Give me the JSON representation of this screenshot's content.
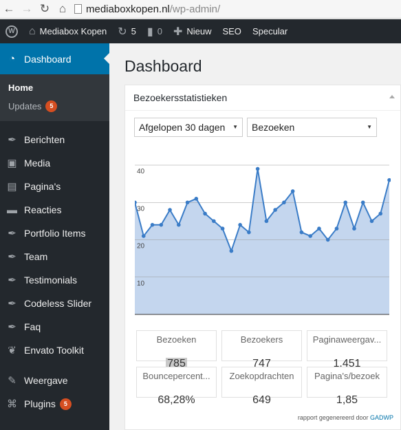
{
  "browser": {
    "url_domain": "mediaboxkopen.nl",
    "url_path": "/wp-admin/"
  },
  "adminbar": {
    "site_name": "Mediabox Kopen",
    "updates_count": "5",
    "comments_count": "0",
    "new_label": "Nieuw",
    "seo_label": "SEO",
    "theme_label": "Specular"
  },
  "sidebar": {
    "active": "Dashboard",
    "submenu": [
      {
        "label": "Home",
        "badge": ""
      },
      {
        "label": "Updates",
        "badge": "5"
      }
    ],
    "items": [
      {
        "label": "Berichten",
        "icon": "pin-icon"
      },
      {
        "label": "Media",
        "icon": "media-icon"
      },
      {
        "label": "Pagina's",
        "icon": "pages-icon"
      },
      {
        "label": "Reacties",
        "icon": "comments-icon"
      },
      {
        "label": "Portfolio Items",
        "icon": "pin-icon"
      },
      {
        "label": "Team",
        "icon": "pin-icon"
      },
      {
        "label": "Testimonials",
        "icon": "pin-icon"
      },
      {
        "label": "Codeless Slider",
        "icon": "pin-icon"
      },
      {
        "label": "Faq",
        "icon": "pin-icon"
      },
      {
        "label": "Envato Toolkit",
        "icon": "leaf-icon"
      }
    ],
    "items2": [
      {
        "label": "Weergave",
        "icon": "brush-icon",
        "badge": ""
      },
      {
        "label": "Plugins",
        "icon": "plugin-icon",
        "badge": "5"
      }
    ]
  },
  "main": {
    "page_title": "Dashboard",
    "widget_title": "Bezoekersstatistieken",
    "period_select": "Afgelopen 30 dagen",
    "metric_select": "Bezoeken",
    "footer_text": "rapport gegenereerd door",
    "footer_link": "GADWP"
  },
  "stats": [
    {
      "label": "Bezoeken",
      "value": "785"
    },
    {
      "label": "Bezoekers",
      "value": "747"
    },
    {
      "label": "Paginaweergav...",
      "value": "1.451"
    },
    {
      "label": "Bouncepercent...",
      "value": "68,28%"
    },
    {
      "label": "Zoekopdrachten",
      "value": "649"
    },
    {
      "label": "Pagina's/bezoek",
      "value": "1,85"
    }
  ],
  "chart_data": {
    "type": "area",
    "y_ticks": [
      "10",
      "20",
      "30",
      "40"
    ],
    "ylim": [
      0,
      40
    ],
    "values": [
      30,
      21,
      24,
      24,
      28,
      24,
      30,
      31,
      27,
      25,
      23,
      17,
      24,
      22,
      39,
      25,
      28,
      30,
      33,
      22,
      21,
      23,
      20,
      23,
      30,
      23,
      30,
      25,
      27,
      36
    ],
    "grid": true,
    "colors": {
      "fill": "#c4d6ee",
      "line": "#3a7cc7",
      "grid": "#999999"
    }
  }
}
